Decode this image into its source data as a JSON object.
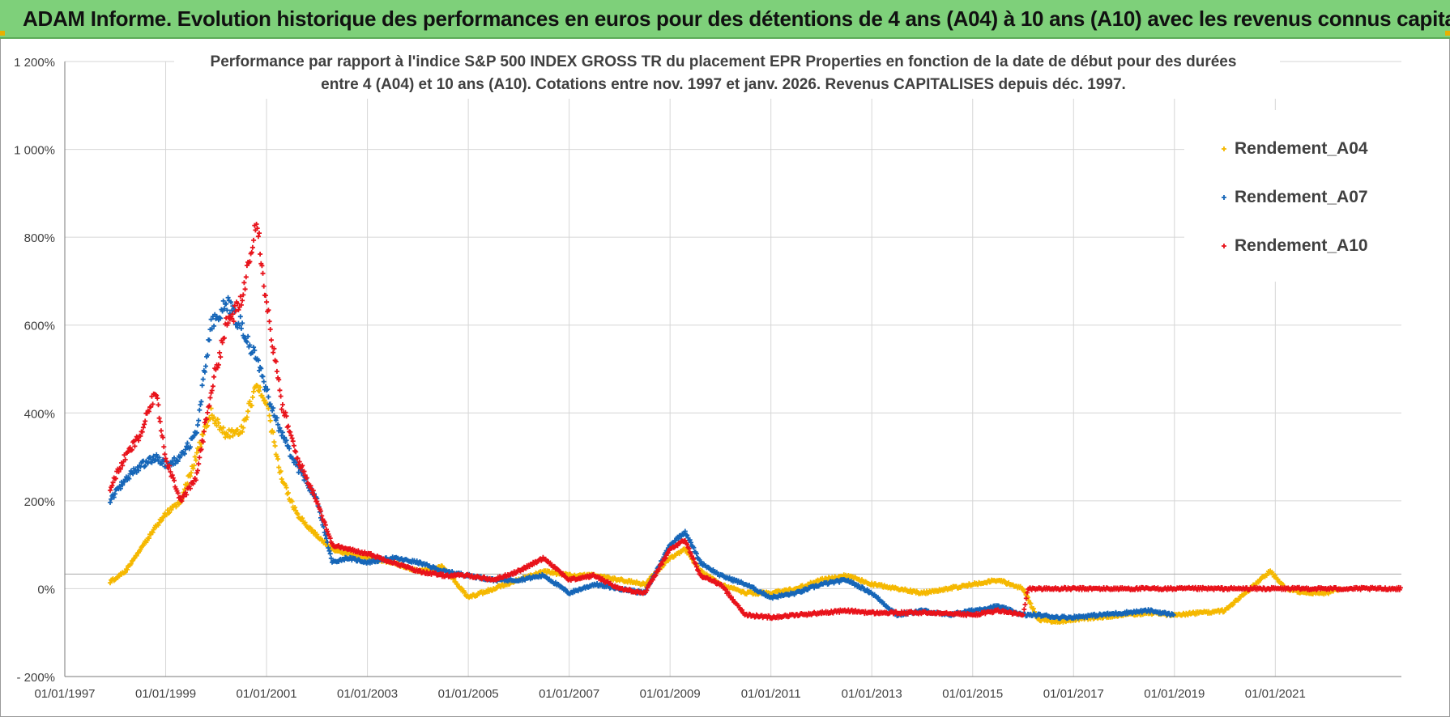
{
  "header": {
    "title": "ADAM Informe. Evolution historique des performances en euros pour des détentions de 4 ans (A04) à 10 ans (A10) avec les revenus connus capitalisés"
  },
  "colors": {
    "header_bg": "#7ed07a",
    "a04": "#f5b800",
    "a07": "#1666b8",
    "a10": "#e8131b",
    "grid": "#d6d6d6",
    "zero_line": "#a8a8a8"
  },
  "chart_data": {
    "type": "scatter",
    "title_line1": "Performance par rapport à l'indice S&P 500 INDEX GROSS TR  du placement EPR Properties en fonction de la date de début pour des durées",
    "title_line2": "entre 4 (A04) et 10 ans (A10). Cotations entre nov. 1997 et janv. 2026. Revenus CAPITALISES depuis déc. 1997.",
    "xlabel": "",
    "ylabel": "",
    "x_ticks": [
      "01/01/1997",
      "01/01/1999",
      "01/01/2001",
      "01/01/2003",
      "01/01/2005",
      "01/01/2007",
      "01/01/2009",
      "01/01/2011",
      "01/01/2013",
      "01/01/2015",
      "01/01/2017",
      "01/01/2019",
      "01/01/2021"
    ],
    "x_range": [
      1997.0,
      2023.5
    ],
    "y_ticks": [
      "- 200%",
      "0%",
      "200%",
      "400%",
      "600%",
      "800%",
      "1 000%",
      "1 200%"
    ],
    "y_values": [
      -200,
      0,
      200,
      400,
      600,
      800,
      1000,
      1200
    ],
    "y_range": [
      -200,
      1200
    ],
    "legend_position": "top-right",
    "series": [
      {
        "name": "Rendement_A04",
        "color": "#f5b800",
        "points": [
          [
            1997.9,
            15
          ],
          [
            1998.2,
            40
          ],
          [
            1998.5,
            90
          ],
          [
            1998.8,
            140
          ],
          [
            1999.0,
            170
          ],
          [
            1999.3,
            200
          ],
          [
            1999.6,
            300
          ],
          [
            1999.9,
            400
          ],
          [
            2000.2,
            350
          ],
          [
            2000.5,
            360
          ],
          [
            2000.8,
            460
          ],
          [
            2001.0,
            420
          ],
          [
            2001.3,
            250
          ],
          [
            2001.6,
            170
          ],
          [
            2002.0,
            120
          ],
          [
            2002.3,
            90
          ],
          [
            2002.6,
            80
          ],
          [
            2003.0,
            70
          ],
          [
            2003.5,
            60
          ],
          [
            2004.0,
            40
          ],
          [
            2004.5,
            50
          ],
          [
            2005.0,
            -20
          ],
          [
            2005.5,
            0
          ],
          [
            2006.0,
            20
          ],
          [
            2006.5,
            40
          ],
          [
            2007.0,
            30
          ],
          [
            2007.5,
            30
          ],
          [
            2008.0,
            20
          ],
          [
            2008.5,
            10
          ],
          [
            2009.0,
            70
          ],
          [
            2009.3,
            90
          ],
          [
            2009.6,
            40
          ],
          [
            2010.0,
            10
          ],
          [
            2010.5,
            -10
          ],
          [
            2011.0,
            -10
          ],
          [
            2011.5,
            0
          ],
          [
            2012.0,
            20
          ],
          [
            2012.5,
            30
          ],
          [
            2013.0,
            10
          ],
          [
            2013.5,
            0
          ],
          [
            2014.0,
            -10
          ],
          [
            2014.5,
            0
          ],
          [
            2015.0,
            10
          ],
          [
            2015.5,
            20
          ],
          [
            2016.0,
            0
          ],
          [
            2016.3,
            -70
          ],
          [
            2016.7,
            -75
          ],
          [
            2017.0,
            -70
          ],
          [
            2017.5,
            -65
          ],
          [
            2018.0,
            -60
          ],
          [
            2018.5,
            -55
          ],
          [
            2019.0,
            -60
          ],
          [
            2019.5,
            -55
          ],
          [
            2020.0,
            -50
          ],
          [
            2020.3,
            -20
          ],
          [
            2020.6,
            10
          ],
          [
            2020.9,
            40
          ],
          [
            2021.2,
            0
          ],
          [
            2021.6,
            -10
          ],
          [
            2022.0,
            -10
          ],
          [
            2022.3,
            0
          ]
        ]
      },
      {
        "name": "Rendement_A07",
        "color": "#1666b8",
        "points": [
          [
            1997.9,
            200
          ],
          [
            1998.2,
            250
          ],
          [
            1998.5,
            280
          ],
          [
            1998.8,
            300
          ],
          [
            1999.0,
            280
          ],
          [
            1999.3,
            300
          ],
          [
            1999.6,
            350
          ],
          [
            1999.9,
            600
          ],
          [
            2000.2,
            650
          ],
          [
            2000.5,
            600
          ],
          [
            2000.8,
            520
          ],
          [
            2001.0,
            450
          ],
          [
            2001.3,
            350
          ],
          [
            2001.6,
            280
          ],
          [
            2002.0,
            200
          ],
          [
            2002.3,
            60
          ],
          [
            2002.6,
            70
          ],
          [
            2003.0,
            60
          ],
          [
            2003.5,
            70
          ],
          [
            2004.0,
            60
          ],
          [
            2004.5,
            40
          ],
          [
            2005.0,
            30
          ],
          [
            2005.5,
            20
          ],
          [
            2006.0,
            20
          ],
          [
            2006.5,
            30
          ],
          [
            2007.0,
            -10
          ],
          [
            2007.5,
            10
          ],
          [
            2008.0,
            0
          ],
          [
            2008.5,
            -10
          ],
          [
            2009.0,
            100
          ],
          [
            2009.3,
            130
          ],
          [
            2009.6,
            60
          ],
          [
            2010.0,
            30
          ],
          [
            2010.5,
            10
          ],
          [
            2011.0,
            -20
          ],
          [
            2011.5,
            -10
          ],
          [
            2012.0,
            10
          ],
          [
            2012.5,
            20
          ],
          [
            2013.0,
            -10
          ],
          [
            2013.5,
            -60
          ],
          [
            2014.0,
            -50
          ],
          [
            2014.5,
            -60
          ],
          [
            2015.0,
            -50
          ],
          [
            2015.5,
            -40
          ],
          [
            2016.0,
            -60
          ],
          [
            2016.3,
            -60
          ],
          [
            2016.7,
            -65
          ],
          [
            2017.0,
            -65
          ],
          [
            2017.5,
            -60
          ],
          [
            2018.0,
            -55
          ],
          [
            2018.5,
            -50
          ],
          [
            2019.0,
            -60
          ]
        ]
      },
      {
        "name": "Rendement_A10",
        "color": "#e8131b",
        "points": [
          [
            1997.9,
            230
          ],
          [
            1998.2,
            300
          ],
          [
            1998.5,
            350
          ],
          [
            1998.8,
            450
          ],
          [
            1999.0,
            300
          ],
          [
            1999.3,
            200
          ],
          [
            1999.6,
            250
          ],
          [
            1999.9,
            450
          ],
          [
            2000.2,
            600
          ],
          [
            2000.5,
            650
          ],
          [
            2000.8,
            850
          ],
          [
            2001.0,
            650
          ],
          [
            2001.3,
            420
          ],
          [
            2001.6,
            300
          ],
          [
            2002.0,
            200
          ],
          [
            2002.3,
            100
          ],
          [
            2002.6,
            90
          ],
          [
            2003.0,
            80
          ],
          [
            2003.5,
            60
          ],
          [
            2004.0,
            40
          ],
          [
            2004.5,
            30
          ],
          [
            2005.0,
            30
          ],
          [
            2005.5,
            20
          ],
          [
            2006.0,
            40
          ],
          [
            2006.5,
            70
          ],
          [
            2007.0,
            20
          ],
          [
            2007.5,
            30
          ],
          [
            2008.0,
            0
          ],
          [
            2008.5,
            -10
          ],
          [
            2009.0,
            90
          ],
          [
            2009.3,
            110
          ],
          [
            2009.6,
            30
          ],
          [
            2010.0,
            10
          ],
          [
            2010.5,
            -60
          ],
          [
            2011.0,
            -65
          ],
          [
            2011.5,
            -60
          ],
          [
            2012.0,
            -55
          ],
          [
            2012.5,
            -50
          ],
          [
            2013.0,
            -55
          ],
          [
            2013.5,
            -55
          ],
          [
            2014.0,
            -55
          ],
          [
            2014.5,
            -55
          ],
          [
            2015.0,
            -60
          ],
          [
            2015.5,
            -50
          ],
          [
            2016.0,
            -60
          ],
          [
            2016.1,
            0
          ],
          [
            2017.0,
            0
          ],
          [
            2018.0,
            0
          ],
          [
            2019.0,
            0
          ],
          [
            2020.0,
            0
          ],
          [
            2021.0,
            0
          ],
          [
            2022.0,
            0
          ],
          [
            2023.0,
            0
          ],
          [
            2023.5,
            0
          ]
        ]
      }
    ]
  }
}
